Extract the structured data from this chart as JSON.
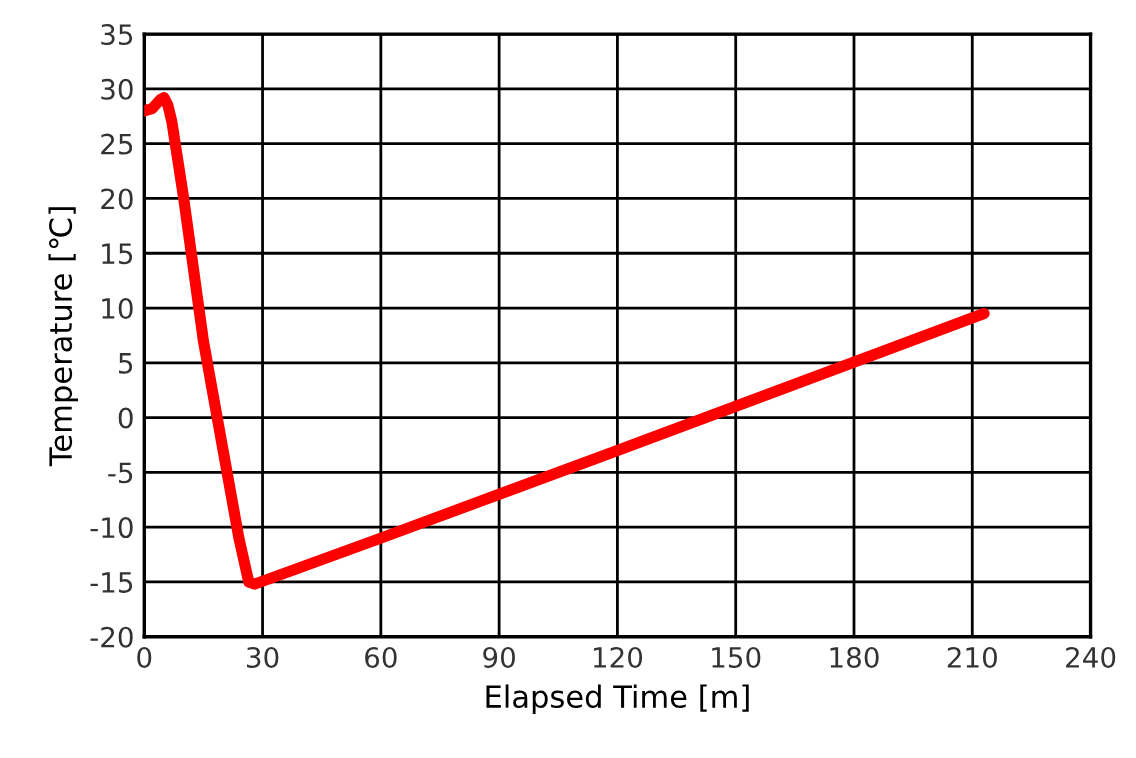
{
  "chart_data": {
    "type": "line",
    "xlabel": "Elapsed Time [m]",
    "ylabel": "Temperature [℃]",
    "xlim": [
      0,
      240
    ],
    "xticks": [
      0,
      30,
      60,
      90,
      120,
      150,
      180,
      210,
      240
    ],
    "ylim": [
      -20,
      35
    ],
    "yticks": [
      -20,
      -15,
      -10,
      -5,
      0,
      5,
      10,
      15,
      20,
      25,
      30,
      35
    ],
    "grid": true,
    "marker": "none",
    "line_style": "solid",
    "series": [
      {
        "color": "#ff0000",
        "x": [
          0,
          2,
          4,
          5,
          6,
          7,
          10,
          15,
          20,
          24,
          26.5,
          28,
          60,
          120,
          213
        ],
        "values": [
          28,
          28.2,
          29,
          29.2,
          28.5,
          27,
          20,
          7,
          -3,
          -11,
          -15,
          -15.2,
          -11,
          -3,
          9.5
        ]
      }
    ]
  }
}
